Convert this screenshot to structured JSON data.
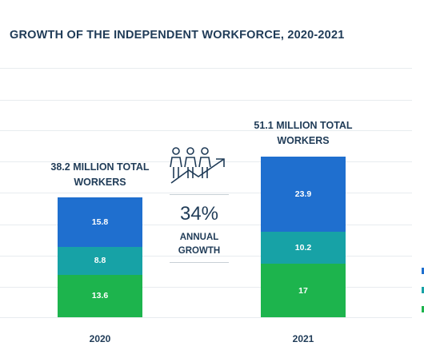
{
  "chart_data": {
    "type": "bar",
    "stacked": true,
    "title": "GROWTH OF THE INDEPENDENT WORKFORCE, 2020-2021",
    "categories": [
      "2020",
      "2021"
    ],
    "totals_labels": [
      "38.2 MILLION TOTAL WORKERS",
      "51.1 MILLION TOTAL WORKERS"
    ],
    "series": [
      {
        "values": [
          13.6,
          17
        ],
        "color": "#1db44d"
      },
      {
        "values": [
          8.8,
          10.2
        ],
        "color": "#17a2a6"
      },
      {
        "values": [
          15.8,
          23.9
        ],
        "color": "#1f6fcf"
      }
    ],
    "annotation": {
      "value": "34%",
      "label_line1": "ANNUAL",
      "label_line2": "GROWTH"
    },
    "grid": true
  }
}
